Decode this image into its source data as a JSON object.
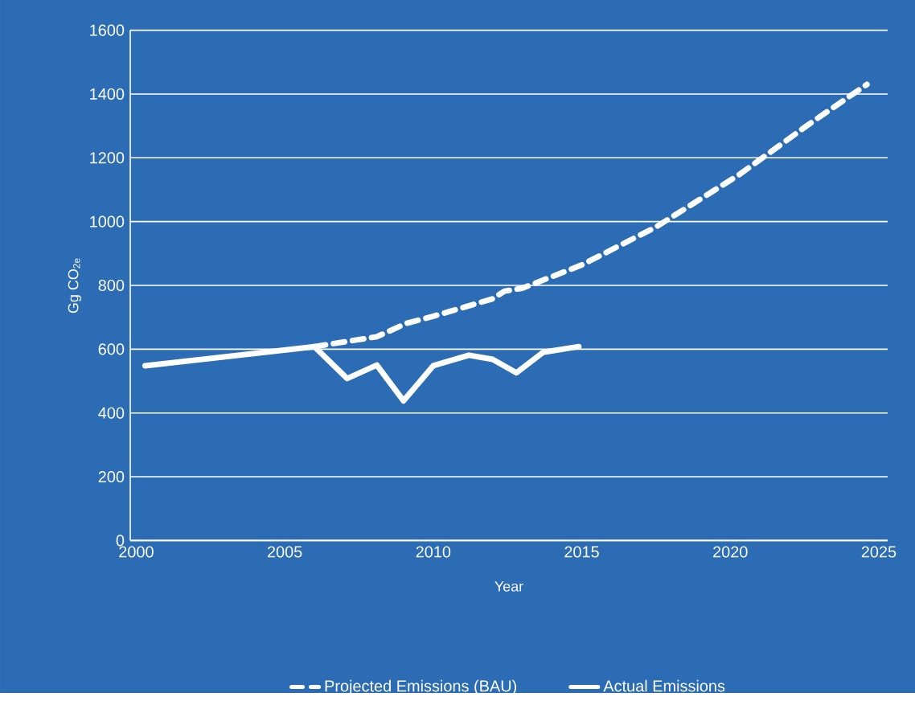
{
  "chart_data": {
    "type": "line",
    "xlabel": "Year",
    "ylabel": "Gg CO$_{2e}$",
    "xlim": [
      1999.8,
      2025.3
    ],
    "xticks": [
      2000,
      2005,
      2010,
      2015,
      2020,
      2025
    ],
    "ylim": [
      0,
      1600
    ],
    "yticks": [
      0,
      200,
      400,
      600,
      800,
      1000,
      1200,
      1400,
      1600
    ],
    "grid": "y",
    "legend": "bottom",
    "marker": "none",
    "series": [
      {
        "name": "Projected Emissions (BAU)",
        "color": "#ffffff",
        "line_style": "dashed",
        "x": [
          2006.0,
          2008.1,
          2009.1,
          2010.0,
          2012.0,
          2012.4,
          2013.0,
          2015.0,
          2017.5,
          2020.3,
          2022.6,
          2024.6
        ],
        "values": [
          608,
          639,
          681,
          703,
          758,
          782,
          791,
          864,
          983,
          1147,
          1302,
          1430
        ]
      },
      {
        "name": "Actual Emissions",
        "color": "#ffffff",
        "line_style": "solid",
        "x": [
          2000.3,
          2006.0,
          2007.1,
          2008.1,
          2009.0,
          2010.0,
          2011.2,
          2012.0,
          2012.8,
          2013.7,
          2014.9
        ],
        "values": [
          548,
          608,
          508,
          550,
          438,
          548,
          581,
          568,
          526,
          590,
          608
        ]
      }
    ]
  }
}
